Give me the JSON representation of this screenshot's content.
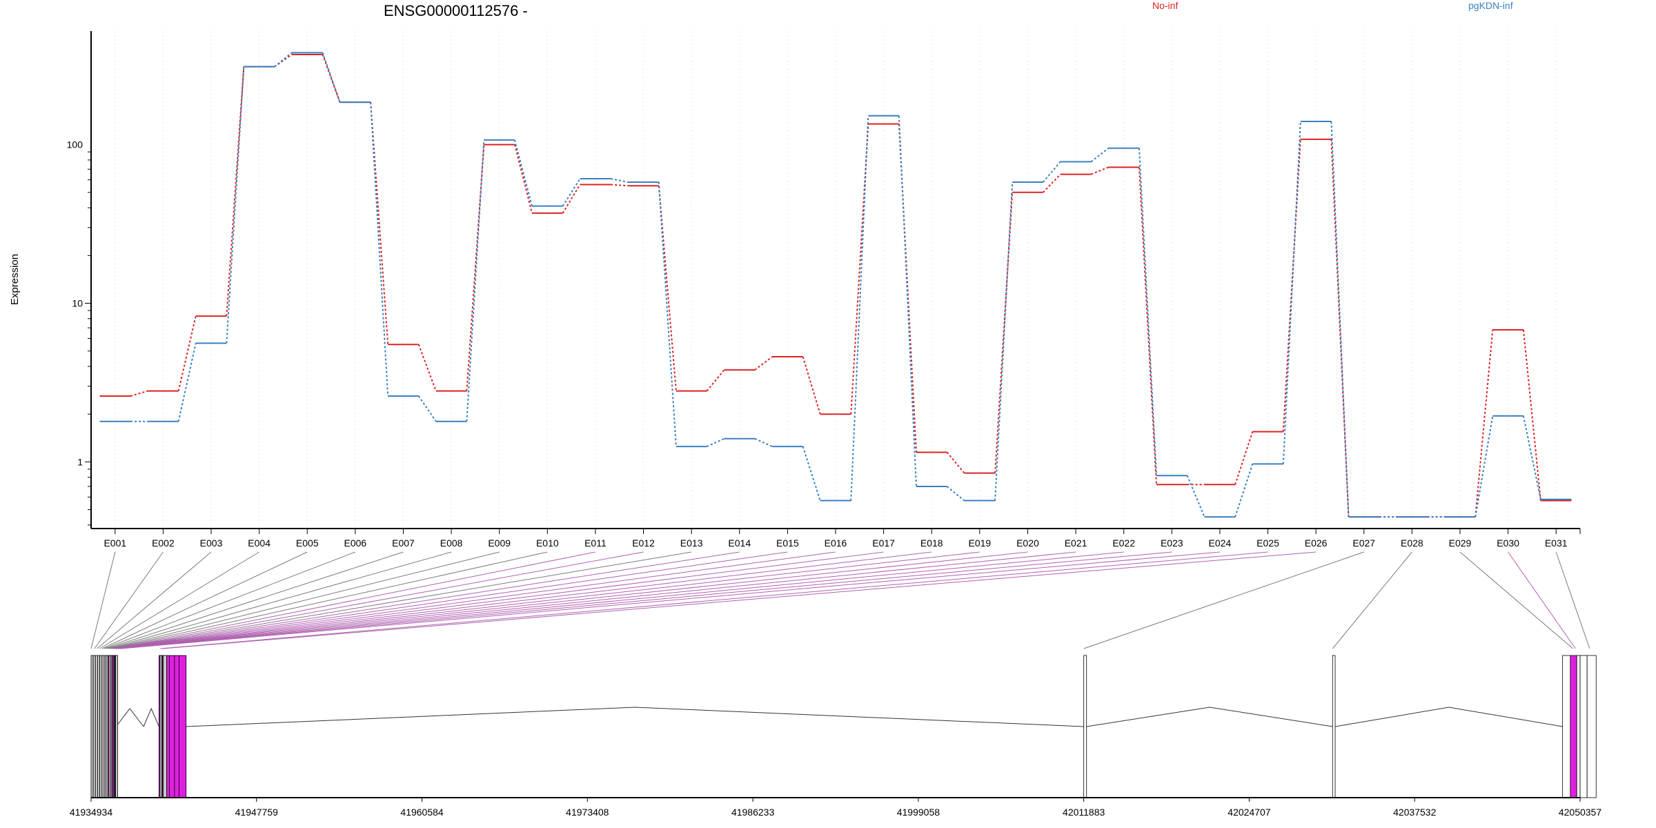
{
  "chart_data": {
    "type": "line",
    "title": "ENSG00000112576 -",
    "ylabel": "Expression",
    "y_scale": "log",
    "ylim": [
      0.38,
      520
    ],
    "y_ticks": [
      {
        "v": 1,
        "label": "1"
      },
      {
        "v": 10,
        "label": "10"
      },
      {
        "v": 100,
        "label": "100"
      }
    ],
    "grid": "vertical dotted",
    "categories": [
      "E001",
      "E002",
      "E003",
      "E004",
      "E005",
      "E006",
      "E007",
      "E008",
      "E009",
      "E010",
      "E011",
      "E012",
      "E013",
      "E014",
      "E015",
      "E016",
      "E017",
      "E018",
      "E019",
      "E020",
      "E021",
      "E022",
      "E023",
      "E024",
      "E025",
      "E026",
      "E027",
      "E028",
      "E029",
      "E030",
      "E031"
    ],
    "series": [
      {
        "name": "No-inf",
        "color": "#dd2222",
        "values": [
          2.6,
          2.8,
          8.3,
          310,
          370,
          185,
          5.5,
          2.8,
          100,
          37,
          56,
          55,
          2.8,
          3.8,
          4.6,
          2.0,
          135,
          1.15,
          0.85,
          50,
          65,
          72,
          0.72,
          0.72,
          1.55,
          108,
          0.45,
          0.45,
          0.45,
          6.8,
          0.57
        ]
      },
      {
        "name": "pgKDN-inf",
        "color": "#3a7fc1",
        "values": [
          1.8,
          1.8,
          5.6,
          310,
          380,
          185,
          2.6,
          1.8,
          107,
          41,
          61,
          58,
          1.25,
          1.4,
          1.25,
          0.57,
          152,
          0.7,
          0.57,
          58,
          78,
          95,
          0.82,
          0.45,
          0.97,
          140,
          0.45,
          0.45,
          0.45,
          1.95,
          0.58
        ]
      }
    ],
    "genome_axis": {
      "range": [
        41934934,
        42050357
      ],
      "ticks": [
        "41934934",
        "41947759",
        "41960584",
        "41973408",
        "41986233",
        "41999058",
        "42011883",
        "42024707",
        "42037532",
        "42050357"
      ]
    },
    "exons": [
      {
        "s": 41934934,
        "e": 41935100,
        "hl": false
      },
      {
        "s": 41935100,
        "e": 41935270,
        "hl": false
      },
      {
        "s": 41935270,
        "e": 41935440,
        "hl": false
      },
      {
        "s": 41935440,
        "e": 41935610,
        "hl": false
      },
      {
        "s": 41935610,
        "e": 41935780,
        "hl": false
      },
      {
        "s": 41935780,
        "e": 41935950,
        "hl": false
      },
      {
        "s": 41935950,
        "e": 41936090,
        "hl": false
      },
      {
        "s": 41936090,
        "e": 41936230,
        "hl": false
      },
      {
        "s": 41936230,
        "e": 41936320,
        "hl": true
      },
      {
        "s": 41936320,
        "e": 41936440,
        "hl": false
      },
      {
        "s": 41936440,
        "e": 41936540,
        "hl": false
      },
      {
        "s": 41936540,
        "e": 41936640,
        "hl": true
      },
      {
        "s": 41936640,
        "e": 41936700,
        "hl": false
      },
      {
        "s": 41936700,
        "e": 41936760,
        "hl": false
      },
      {
        "s": 41936760,
        "e": 41936800,
        "hl": false
      },
      {
        "s": 41936800,
        "e": 41936830,
        "hl": true
      },
      {
        "s": 41936830,
        "e": 41936870,
        "hl": false
      },
      {
        "s": 41940200,
        "e": 41940280,
        "hl": true
      },
      {
        "s": 41940280,
        "e": 41940420,
        "hl": false
      },
      {
        "s": 41940420,
        "e": 41940480,
        "hl": true
      },
      {
        "s": 41940480,
        "e": 41940520,
        "hl": false
      },
      {
        "s": 41940520,
        "e": 41940800,
        "hl": false
      },
      {
        "s": 41940800,
        "e": 41941000,
        "hl": true
      },
      {
        "s": 41941000,
        "e": 41941400,
        "hl": true
      },
      {
        "s": 41941400,
        "e": 41941750,
        "hl": true
      },
      {
        "s": 41941750,
        "e": 41942300,
        "hl": true
      },
      {
        "s": 42011883,
        "e": 42012100,
        "hl": false
      },
      {
        "s": 42031170,
        "e": 42031370,
        "hl": false
      },
      {
        "s": 42049000,
        "e": 42049600,
        "hl": false
      },
      {
        "s": 42049600,
        "e": 42050100,
        "hl": true
      },
      {
        "s": 42050100,
        "e": 42050357,
        "hl": false
      },
      {
        "s": 42050357,
        "e": 42050900,
        "hl": false
      },
      {
        "s": 42050900,
        "e": 42051600,
        "hl": false
      }
    ],
    "introns": [
      [
        41936870,
        41939000
      ],
      [
        41939000,
        41940200
      ],
      [
        41942300,
        42011883
      ],
      [
        42012100,
        42031170
      ],
      [
        42031370,
        42049000
      ],
      [
        42050357,
        42050900
      ]
    ],
    "connector_targets": [
      {
        "g": 41934934,
        "hl": false
      },
      {
        "g": 41935200,
        "hl": false
      },
      {
        "g": 41935400,
        "hl": false
      },
      {
        "g": 41935600,
        "hl": false
      },
      {
        "g": 41935800,
        "hl": false
      },
      {
        "g": 41935950,
        "hl": false
      },
      {
        "g": 41936100,
        "hl": false
      },
      {
        "g": 41936250,
        "hl": false
      },
      {
        "g": 41936400,
        "hl": false
      },
      {
        "g": 41936500,
        "hl": false
      },
      {
        "g": 41936600,
        "hl": true
      },
      {
        "g": 41936700,
        "hl": true
      },
      {
        "g": 41936760,
        "hl": false
      },
      {
        "g": 41936800,
        "hl": true
      },
      {
        "g": 41936840,
        "hl": true
      },
      {
        "g": 41936870,
        "hl": true
      },
      {
        "g": 41936900,
        "hl": true
      },
      {
        "g": 41936950,
        "hl": true
      },
      {
        "g": 41937000,
        "hl": true
      },
      {
        "g": 41937050,
        "hl": true
      },
      {
        "g": 41937100,
        "hl": true
      },
      {
        "g": 41937150,
        "hl": true
      },
      {
        "g": 41937200,
        "hl": true
      },
      {
        "g": 41937250,
        "hl": true
      },
      {
        "g": 41940300,
        "hl": true
      },
      {
        "g": 41940500,
        "hl": true
      },
      {
        "g": 42011883,
        "hl": false
      },
      {
        "g": 42031170,
        "hl": false
      },
      {
        "g": 42049800,
        "hl": false
      },
      {
        "g": 42050000,
        "hl": true
      },
      {
        "g": 42051100,
        "hl": false
      }
    ]
  },
  "legend": [
    {
      "label": "No-inf",
      "color": "#dd2222"
    },
    {
      "label": "pgKDN-inf",
      "color": "#3a7fc1"
    }
  ]
}
